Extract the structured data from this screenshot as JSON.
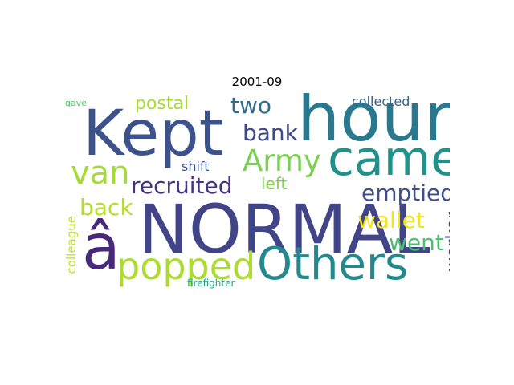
{
  "title": "2001-09",
  "words": [
    {
      "text": "NORMAL",
      "color": "#414487"
    },
    {
      "text": "hour",
      "color": "#2a788e"
    },
    {
      "text": "Kept",
      "color": "#3b528b"
    },
    {
      "text": "came",
      "color": "#21918c"
    },
    {
      "text": "Others",
      "color": "#23898e"
    },
    {
      "text": "â",
      "color": "#482878"
    },
    {
      "text": "popped",
      "color": "#addc30"
    },
    {
      "text": "Army",
      "color": "#7ad151"
    },
    {
      "text": "van",
      "color": "#a5db36"
    },
    {
      "text": "recruited",
      "color": "#46327e"
    },
    {
      "text": "bank",
      "color": "#3e4989"
    },
    {
      "text": "two",
      "color": "#2f6c8e"
    },
    {
      "text": "emptied",
      "color": "#3d4e8a"
    },
    {
      "text": "wallet",
      "color": "#f1e51d"
    },
    {
      "text": "back",
      "color": "#b5de2b"
    },
    {
      "text": "went",
      "color": "#4ac16d"
    },
    {
      "text": "postal",
      "color": "#a8db34"
    },
    {
      "text": "worker",
      "color": "#404688"
    },
    {
      "text": "left",
      "color": "#7fd34e"
    },
    {
      "text": "shift",
      "color": "#3a548c"
    },
    {
      "text": "collected",
      "color": "#33638d"
    },
    {
      "text": "colleague",
      "color": "#c2df23"
    },
    {
      "text": "firefighter",
      "color": "#1fa188"
    },
    {
      "text": "gave",
      "color": "#54c568"
    }
  ]
}
